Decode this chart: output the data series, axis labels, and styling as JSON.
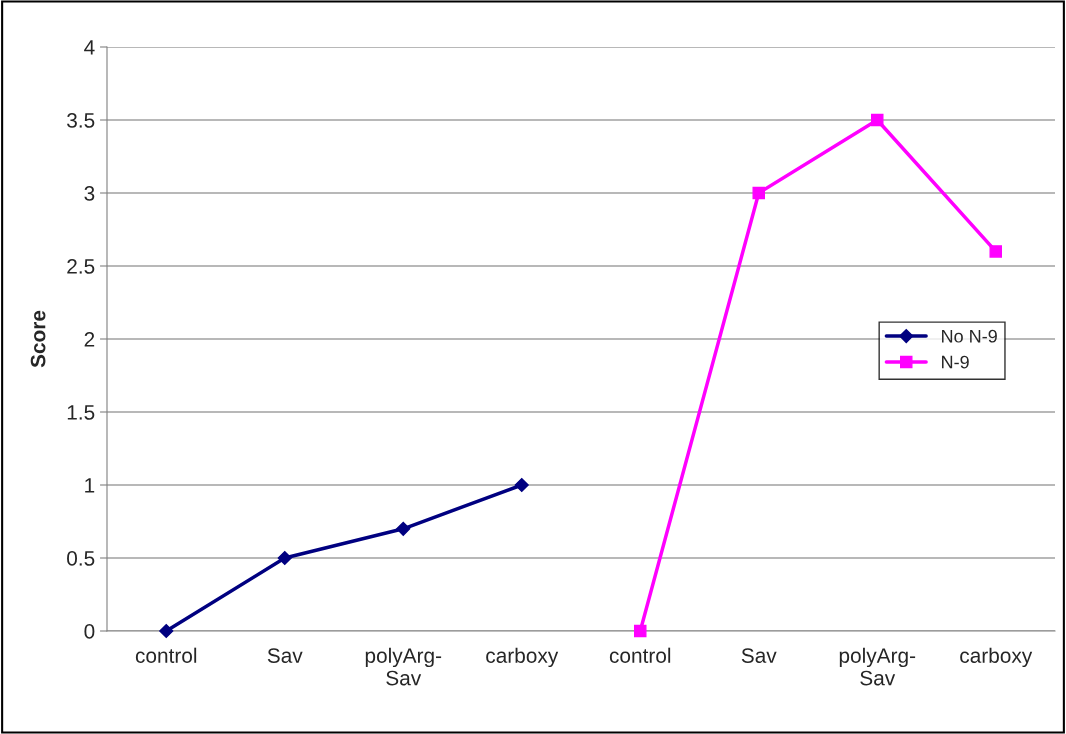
{
  "chart_data": {
    "type": "line",
    "ylabel": "Score",
    "categories": [
      "control",
      "Sav",
      "polyArg-\nSav",
      "carboxy",
      "control",
      "Sav",
      "polyArg-\nSav",
      "carboxy"
    ],
    "series": [
      {
        "name": "No N-9",
        "color": "#000080",
        "marker": "diamond",
        "values": [
          0,
          0.5,
          0.7,
          1.0,
          null,
          null,
          null,
          null
        ]
      },
      {
        "name": "N-9",
        "color": "#ff00ff",
        "marker": "square",
        "values": [
          null,
          null,
          null,
          null,
          0,
          3.0,
          3.5,
          2.6
        ]
      }
    ],
    "ylim": [
      0,
      4
    ],
    "yticks": [
      0,
      0.5,
      1,
      1.5,
      2,
      2.5,
      3,
      3.5,
      4
    ],
    "grid": "y",
    "legend": "right",
    "line_style": "solid"
  }
}
